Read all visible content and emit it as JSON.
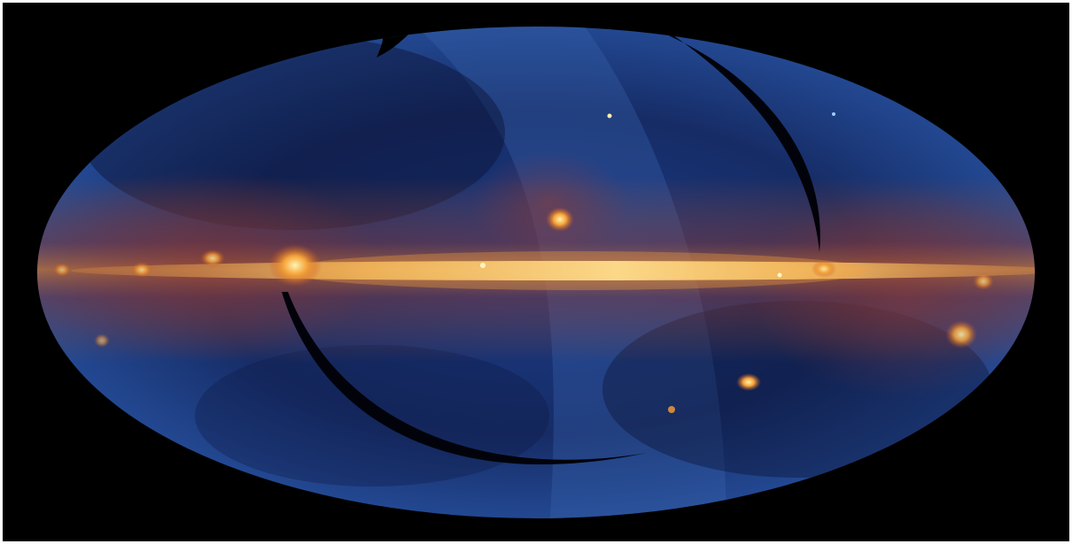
{
  "image": {
    "subject": "all-sky-infrared-map",
    "projection": "mollweide",
    "colors": {
      "background": "#000000",
      "frame": "#ffffff",
      "sky_edge": "#2b4f9a",
      "sky_mid": "#1b3168",
      "sky_dark": "#0a1232",
      "glow_band": "#c4541c",
      "plane_core": "#fff2a0",
      "scan_gap": "#02030a"
    }
  }
}
